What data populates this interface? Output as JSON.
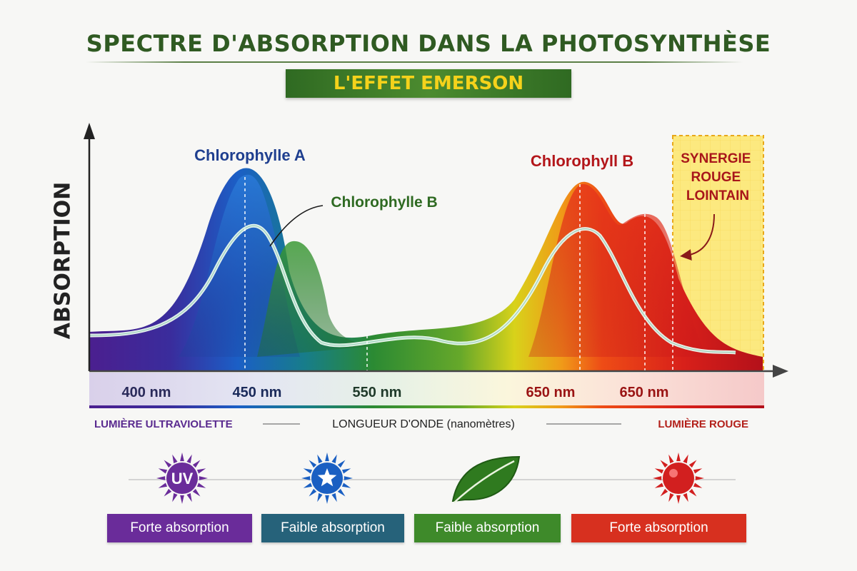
{
  "title": "SPECTRE D'ABSORPTION DANS LA PHOTOSYNTHÈSE",
  "subtitle": "L'EFFET EMERSON",
  "chart_data": {
    "type": "area",
    "title": "SPECTRE D'ABSORPTION DANS LA PHOTOSYNTHÈSE",
    "subtitle": "L'EFFET EMERSON",
    "ylabel": "ABSORPTION",
    "xlabel": "LONGUEUR D'ONDE (nanomètres)",
    "x_tick_labels": [
      "400 nm",
      "450 nm",
      "550 nm",
      "650 nm",
      "650 nm"
    ],
    "x_ends": {
      "left": "LUMIÈRE ULTRAVIOLETTE",
      "right": "LUMIÈRE ROUGE"
    },
    "x": [
      380,
      400,
      420,
      440,
      450,
      460,
      480,
      500,
      520,
      540,
      560,
      580,
      600,
      620,
      640,
      650,
      660,
      670,
      680,
      690,
      700,
      710,
      720,
      740
    ],
    "series": [
      {
        "name": "Chlorophylle A",
        "color": "#1f4da8",
        "values": [
          0.05,
          0.07,
          0.25,
          0.7,
          0.75,
          0.55,
          0.1,
          0.06,
          0.05,
          0.05,
          0.06,
          0.08,
          0.1,
          0.13,
          0.2,
          0.25,
          0.24,
          0.2,
          0.15,
          0.12,
          0.1,
          0.07,
          0.05,
          0.03
        ]
      },
      {
        "name": "Chlorophylle B",
        "color": "#2f7a2a",
        "values": [
          0.02,
          0.03,
          0.06,
          0.15,
          0.25,
          0.45,
          0.52,
          0.3,
          0.08,
          0.04,
          0.04,
          0.05,
          0.08,
          0.14,
          0.2,
          0.22,
          0.19,
          0.14,
          0.09,
          0.05,
          0.03,
          0.02,
          0.01,
          0.0
        ]
      },
      {
        "name": "Chlorophyll B",
        "color": "#c0141a",
        "values": [
          0.0,
          0.0,
          0.0,
          0.0,
          0.0,
          0.0,
          0.0,
          0.0,
          0.01,
          0.03,
          0.08,
          0.2,
          0.45,
          0.7,
          0.85,
          0.85,
          0.65,
          0.55,
          0.72,
          0.7,
          0.55,
          0.3,
          0.15,
          0.1
        ]
      }
    ],
    "annotations": [
      "Chlorophylle A",
      "Chlorophylle B",
      "Chlorophyll B",
      "SYNERGIE ROUGE LOINTAIN"
    ],
    "highlight_region": {
      "x_start": 700,
      "x_end": 740,
      "label": "SYNERGIE ROUGE LOINTAIN"
    },
    "dashed_markers": [
      450,
      550,
      650,
      680,
      690
    ],
    "grid": false,
    "legend": "none"
  },
  "icons": [
    {
      "name": "uv-sun-icon",
      "label": "UV",
      "color": "#6a2c9a"
    },
    {
      "name": "blue-star-sun-icon",
      "label": "",
      "color": "#1a5fc2"
    },
    {
      "name": "leaf-icon",
      "label": "",
      "color": "#2f7a1f"
    },
    {
      "name": "red-sun-icon",
      "label": "",
      "color": "#d21f1f"
    }
  ],
  "badges": [
    {
      "label": "Forte absorption",
      "color": "#6a2c9a"
    },
    {
      "label": "Faible absorption",
      "color": "#26627a"
    },
    {
      "label": "Faible absorption",
      "color": "#3e8a2a"
    },
    {
      "label": "Forte absorption",
      "color": "#d7301f"
    }
  ]
}
